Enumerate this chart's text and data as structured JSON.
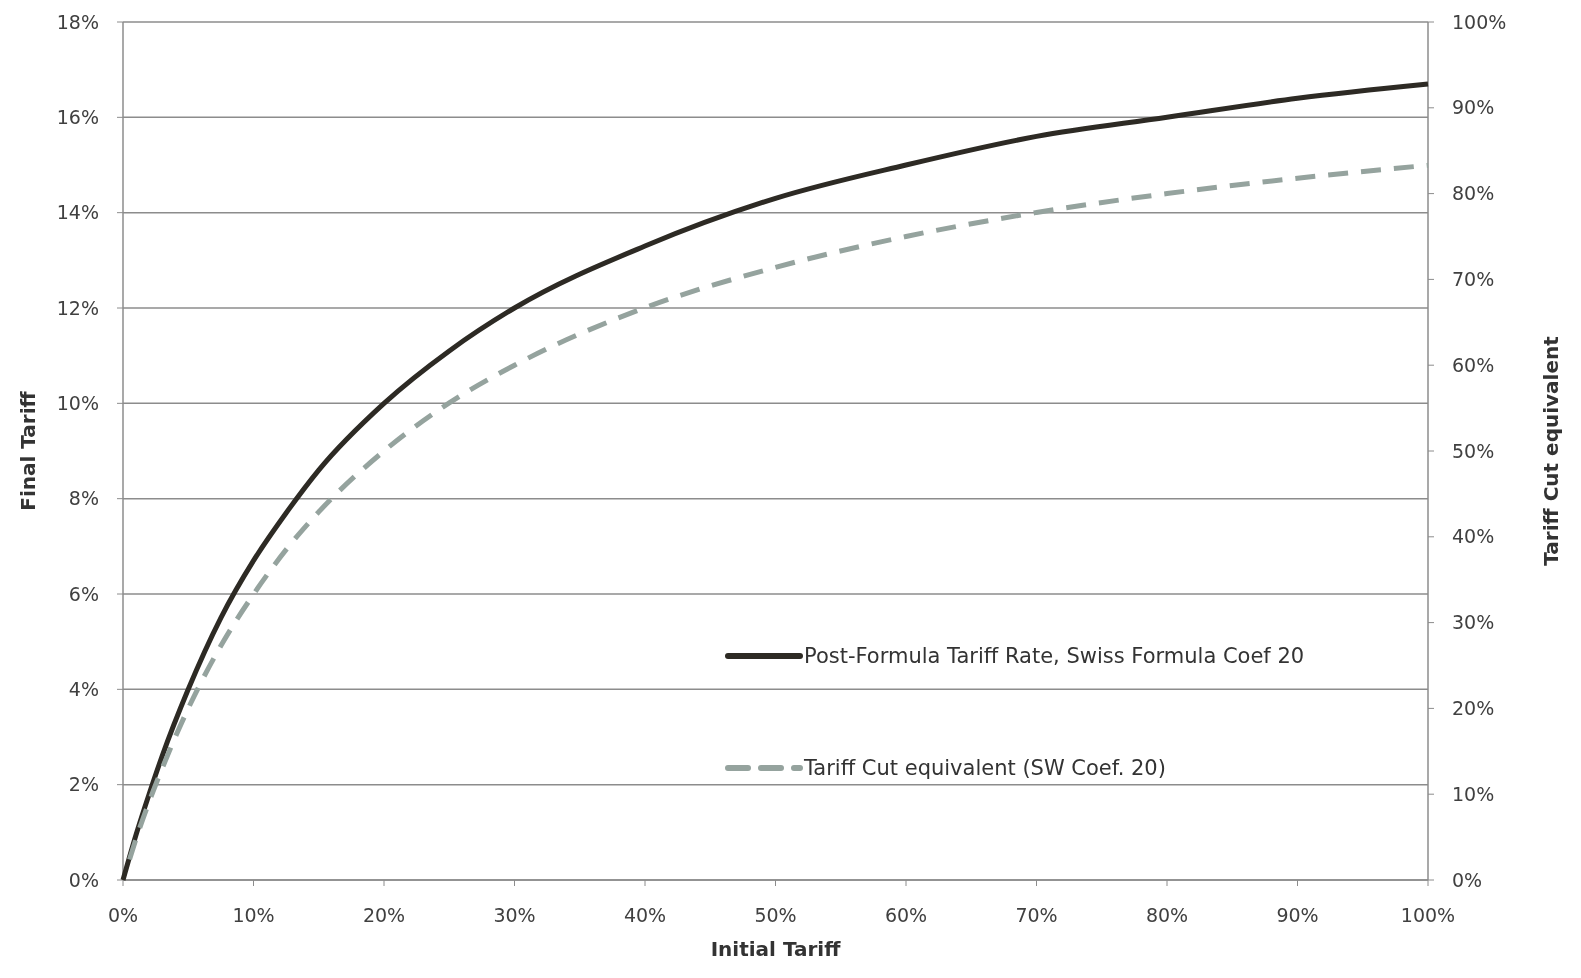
{
  "chart_data": {
    "type": "line",
    "xlabel": "Initial Tariff",
    "ylabel": "Final Tariff",
    "y2label": "Tariff Cut equivalent",
    "x": [
      0,
      1,
      2,
      3,
      5,
      7.5,
      10,
      12.5,
      15,
      20,
      25,
      30,
      40,
      50,
      60,
      70,
      80,
      90,
      100
    ],
    "series": [
      {
        "name": "Post-Formula Tariff Rate, Swiss Formula Coef 20",
        "color": "#2d2a24",
        "line_style": "solid",
        "values": [
          0,
          0.95,
          1.8,
          2.6,
          4,
          5.5,
          6.7,
          7.7,
          8.6,
          10,
          11.1,
          12,
          13.3,
          14.3,
          15,
          15.6,
          16,
          16.4,
          16.7
        ]
      },
      {
        "name": "Tariff Cut equivalent (SW Coef. 20)",
        "color": "#95a39e",
        "line_style": "dashed",
        "axis": "y2",
        "x": [
          0.5,
          1,
          2,
          3,
          5,
          7.5,
          10,
          12.5,
          15,
          20,
          25,
          30,
          40,
          50,
          60,
          70,
          80,
          90,
          100
        ],
        "values": [
          2.4,
          4.8,
          9.1,
          13,
          20,
          27.3,
          33.3,
          38.5,
          42.9,
          50,
          55.6,
          60,
          66.7,
          71.4,
          75,
          77.8,
          80,
          81.8,
          83.3
        ]
      }
    ],
    "xlim": [
      0,
      100
    ],
    "xticks": [
      {
        "value": 0,
        "label": "0%"
      },
      {
        "value": 10,
        "label": "10%"
      },
      {
        "value": 20,
        "label": "20%"
      },
      {
        "value": 30,
        "label": "30%"
      },
      {
        "value": 40,
        "label": "40%"
      },
      {
        "value": 50,
        "label": "50%"
      },
      {
        "value": 60,
        "label": "60%"
      },
      {
        "value": 70,
        "label": "70%"
      },
      {
        "value": 80,
        "label": "80%"
      },
      {
        "value": 90,
        "label": "90%"
      },
      {
        "value": 100,
        "label": "100%"
      }
    ],
    "ylim": [
      0,
      18
    ],
    "yticks": [
      {
        "value": 0,
        "label": "0%"
      },
      {
        "value": 2,
        "label": "2%"
      },
      {
        "value": 4,
        "label": "4%"
      },
      {
        "value": 6,
        "label": "6%"
      },
      {
        "value": 8,
        "label": "8%"
      },
      {
        "value": 10,
        "label": "10%"
      },
      {
        "value": 12,
        "label": "12%"
      },
      {
        "value": 14,
        "label": "14%"
      },
      {
        "value": 16,
        "label": "16%"
      },
      {
        "value": 18,
        "label": "18%"
      }
    ],
    "y2lim": [
      0,
      100
    ],
    "y2ticks": [
      {
        "value": 0,
        "label": "0%"
      },
      {
        "value": 10,
        "label": "10%"
      },
      {
        "value": 20,
        "label": "20%"
      },
      {
        "value": 30,
        "label": "30%"
      },
      {
        "value": 40,
        "label": "40%"
      },
      {
        "value": 50,
        "label": "50%"
      },
      {
        "value": 60,
        "label": "60%"
      },
      {
        "value": 70,
        "label": "70%"
      },
      {
        "value": 80,
        "label": "80%"
      },
      {
        "value": 90,
        "label": "90%"
      },
      {
        "value": 100,
        "label": "100%"
      }
    ],
    "grid": "y",
    "legend": "bottom",
    "marker": "none"
  }
}
